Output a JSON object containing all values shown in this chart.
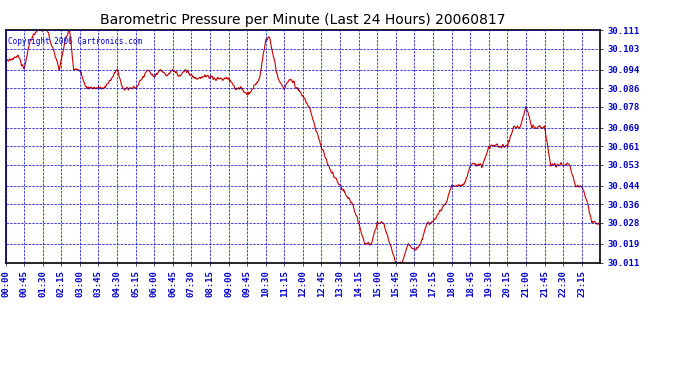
{
  "title": "Barometric Pressure per Minute (Last 24 Hours) 20060817",
  "copyright_text": "Copyright 2006 Cartronics.com",
  "line_color": "#cc0000",
  "bg_color": "#ffffff",
  "plot_bg_color": "#ffffff",
  "grid_color": "#0000cc",
  "text_color": "#0000cc",
  "border_color": "#000000",
  "yticks": [
    30.011,
    30.019,
    30.028,
    30.036,
    30.044,
    30.053,
    30.061,
    30.069,
    30.078,
    30.086,
    30.094,
    30.103,
    30.111
  ],
  "xtick_labels": [
    "00:00",
    "00:45",
    "01:30",
    "02:15",
    "03:00",
    "03:45",
    "04:30",
    "05:15",
    "06:00",
    "06:45",
    "07:30",
    "08:15",
    "09:00",
    "09:45",
    "10:30",
    "11:15",
    "12:00",
    "12:45",
    "13:30",
    "14:15",
    "15:00",
    "15:45",
    "16:30",
    "17:15",
    "18:00",
    "18:45",
    "19:30",
    "20:15",
    "21:00",
    "21:45",
    "22:30",
    "23:15"
  ],
  "ylim": [
    30.011,
    30.111
  ],
  "title_fontsize": 10,
  "tick_fontsize": 6.5,
  "copyright_fontsize": 5.5
}
